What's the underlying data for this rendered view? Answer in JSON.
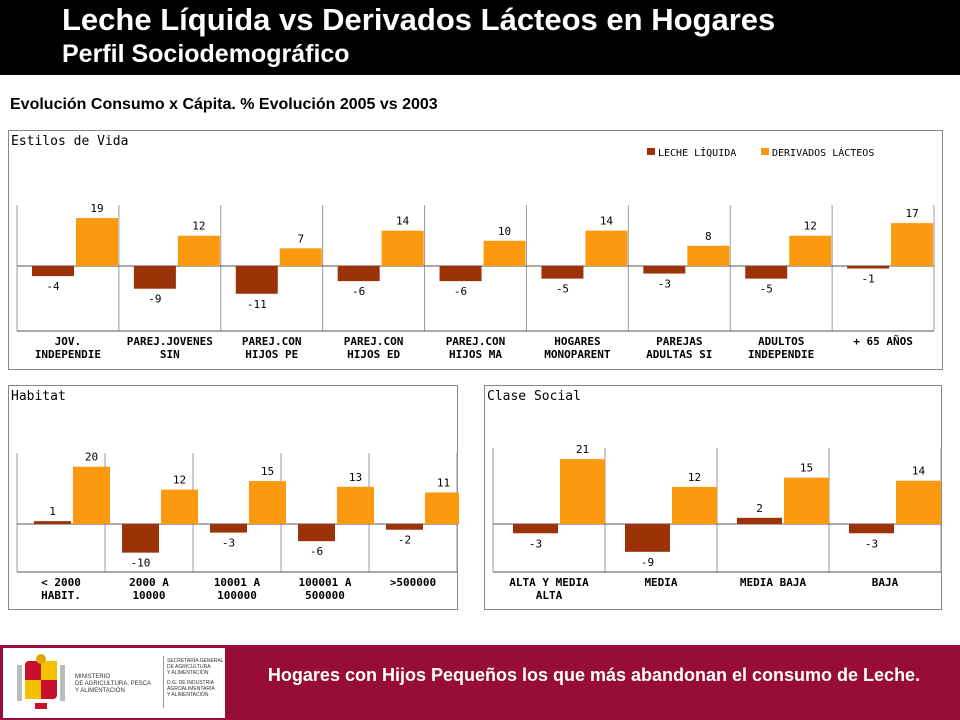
{
  "header": {
    "title": "Leche Líquida vs Derivados Lácteos en Hogares",
    "subtitle": "Perfil Sociodemográfico"
  },
  "section_title": "Evolución Consumo x Cápita.  % Evolución 2005 vs 2003",
  "colors": {
    "leche": "#9c3208",
    "derivados": "#fb9a0f",
    "footer_bg": "#980d36"
  },
  "chart_data": [
    {
      "id": "estilos",
      "type": "bar",
      "title": "Estilos de Vida",
      "legend_position": "top-right",
      "categories": [
        [
          "JOV.",
          "INDEPENDIE"
        ],
        [
          "PAREJ.JOVENES",
          "SIN"
        ],
        [
          "PAREJ.CON",
          "HIJOS PE"
        ],
        [
          "PAREJ.CON",
          "HIJOS ED"
        ],
        [
          "PAREJ.CON",
          "HIJOS MA"
        ],
        [
          "HOGARES",
          "MONOPARENT"
        ],
        [
          "PAREJAS",
          "ADULTAS SI"
        ],
        [
          "ADULTOS",
          "INDEPENDIE"
        ],
        [
          "+ 65 AÑOS"
        ]
      ],
      "series": [
        {
          "name": "LECHE LÍQUIDA",
          "values": [
            -4,
            -9,
            -11,
            -6,
            -6,
            -5,
            -3,
            -5,
            -1
          ]
        },
        {
          "name": "DERIVADOS LÁCTEOS",
          "values": [
            19,
            12,
            7,
            14,
            10,
            14,
            8,
            12,
            17
          ]
        }
      ],
      "ylim": [
        -12,
        21
      ]
    },
    {
      "id": "habitat",
      "type": "bar",
      "title": "Habitat",
      "categories": [
        [
          "< 2000",
          "HABIT."
        ],
        [
          "2000 A",
          "10000"
        ],
        [
          "10001 A",
          "100000"
        ],
        [
          "100001 A",
          "500000"
        ],
        [
          ">500000"
        ]
      ],
      "series": [
        {
          "name": "LECHE LÍQUIDA",
          "values": [
            1,
            -10,
            -3,
            -6,
            -2
          ]
        },
        {
          "name": "DERIVADOS LÁCTEOS",
          "values": [
            20,
            12,
            15,
            13,
            11
          ]
        }
      ],
      "ylim": [
        -11,
        22
      ]
    },
    {
      "id": "clase",
      "type": "bar",
      "title": "Clase Social",
      "categories": [
        [
          "ALTA Y MEDIA",
          "ALTA"
        ],
        [
          "MEDIA"
        ],
        [
          "MEDIA BAJA"
        ],
        [
          "BAJA"
        ]
      ],
      "series": [
        {
          "name": "LECHE LÍQUIDA",
          "values": [
            -3,
            -9,
            2,
            -3
          ]
        },
        {
          "name": "DERIVADOS LÁCTEOS",
          "values": [
            21,
            12,
            15,
            14
          ]
        }
      ],
      "ylim": [
        -10,
        22
      ]
    }
  ],
  "footer": {
    "message": "Hogares con Hijos Pequeños los que más abandonan el consumo de Leche.",
    "logo_lines": [
      "MINISTERIO",
      "DE AGRICULTURA, PESCA",
      "Y ALIMENTACIÓN"
    ],
    "logo_side_lines": [
      "SECRETARÍA GENERAL",
      "DE AGRICULTURA",
      "Y ALIMENTACIÓN",
      "D.G. DE INDUSTRIA",
      "AGROALIMENTARIA",
      "Y ALIMENTACIÓN"
    ]
  }
}
